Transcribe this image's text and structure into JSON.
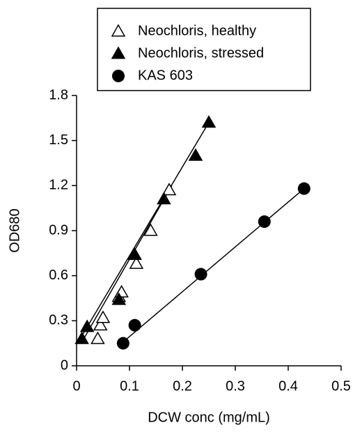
{
  "chart_data": {
    "type": "scatter",
    "x_label": "DCW conc (mg/mL)",
    "y_label": "OD680",
    "xlim": [
      0,
      0.5
    ],
    "xticks": [
      0,
      0.1,
      0.2,
      0.3,
      0.4,
      0.5
    ],
    "ylim": [
      0,
      1.8
    ],
    "yticks": [
      0,
      0.3,
      0.6,
      0.9,
      1.2,
      1.5,
      1.8
    ],
    "series": [
      {
        "name": "Neochloris, healthy",
        "color": "#000000",
        "marker": "triangle-open",
        "x": [
          0.04,
          0.045,
          0.05,
          0.08,
          0.085,
          0.113,
          0.14,
          0.175
        ],
        "values": [
          0.18,
          0.27,
          0.32,
          0.46,
          0.49,
          0.68,
          0.9,
          1.17
        ],
        "fit": {
          "x": [
            0.012,
            0.18
          ],
          "values": [
            0.17,
            1.2
          ]
        }
      },
      {
        "name": "Neochloris, stressed",
        "color": "#000000",
        "marker": "triangle",
        "x": [
          0.01,
          0.02,
          0.08,
          0.11,
          0.165,
          0.225,
          0.25
        ],
        "values": [
          0.18,
          0.26,
          0.44,
          0.74,
          1.11,
          1.4,
          1.62
        ],
        "fit": {
          "x": [
            0.005,
            0.25
          ],
          "values": [
            0.17,
            1.62
          ]
        }
      },
      {
        "name": "KAS 603",
        "color": "#000000",
        "marker": "circle",
        "x": [
          0.088,
          0.11,
          0.235,
          0.355,
          0.43
        ],
        "values": [
          0.15,
          0.27,
          0.61,
          0.96,
          1.18
        ],
        "fit": {
          "x": [
            0.085,
            0.43
          ],
          "values": [
            0.15,
            1.18
          ]
        }
      }
    ]
  }
}
